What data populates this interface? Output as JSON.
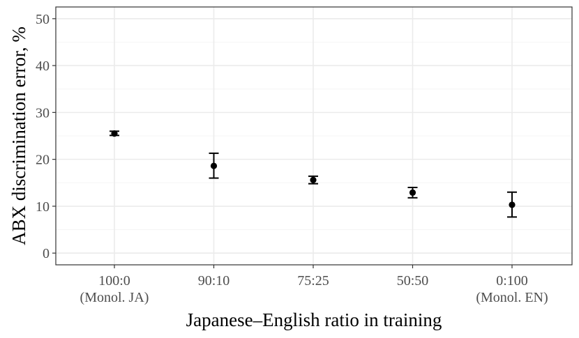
{
  "chart_data": {
    "type": "scatter",
    "xlabel": "Japanese–English ratio in training",
    "ylabel": "ABX discrimination error, %",
    "categories": [
      "100:0",
      "90:10",
      "75:25",
      "50:50",
      "0:100"
    ],
    "category_sublabels": [
      "(Monol. JA)",
      "",
      "",
      "",
      "(Monol. EN)"
    ],
    "values": [
      25.5,
      18.6,
      15.6,
      12.9,
      10.3
    ],
    "error_low": [
      25.1,
      16.0,
      14.8,
      11.8,
      7.7
    ],
    "error_high": [
      26.0,
      21.3,
      16.4,
      14.0,
      13.0
    ],
    "ylim": [
      -2.5,
      52.5
    ],
    "yticks": [
      0,
      10,
      20,
      30,
      40,
      50
    ],
    "grid": true,
    "colors": {
      "panel_background": "#ffffff",
      "panel_border": "#333333",
      "grid_major": "#ebebeb",
      "grid_minor": "#f5f5f5",
      "point": "#000000"
    }
  }
}
